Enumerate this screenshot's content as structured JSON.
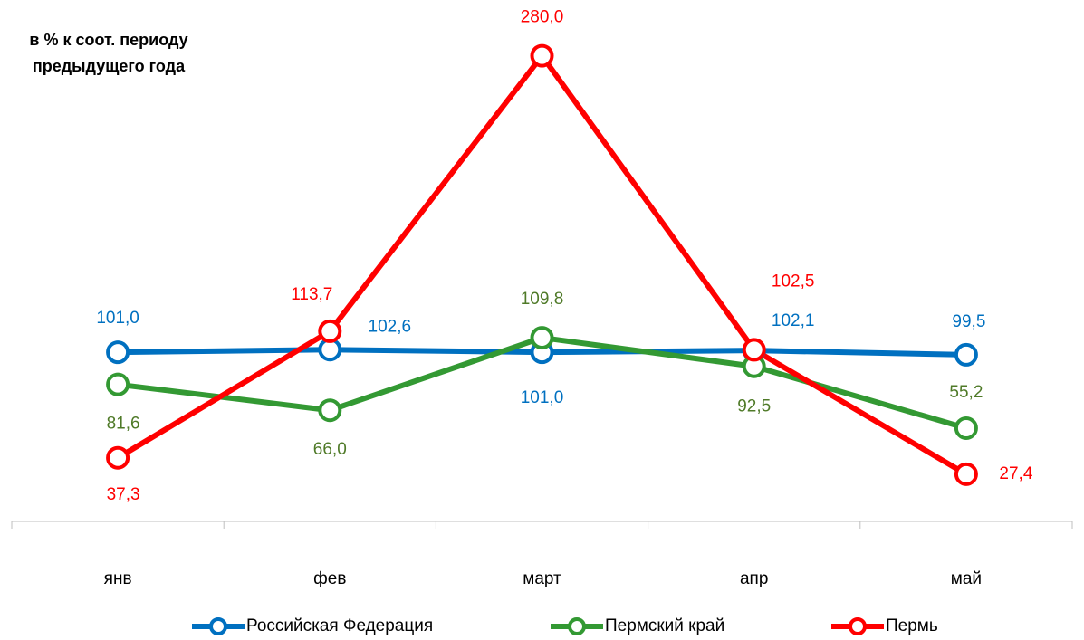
{
  "chart_data": {
    "type": "line",
    "title": [
      "в % к соот. периоду",
      "предыдущего года"
    ],
    "categories": [
      "янв",
      "фев",
      "март",
      "апр",
      "май"
    ],
    "ylim": [
      0,
      300
    ],
    "series": [
      {
        "name": "Российская Федерация",
        "color": "#0070c0",
        "label_color": "#0070c0",
        "values": [
          101.0,
          102.6,
          101.0,
          102.1,
          99.5
        ],
        "value_labels": [
          "101,0",
          "102,6",
          "101,0",
          "102,1",
          "99,5"
        ]
      },
      {
        "name": "Пермский край",
        "color": "#339933",
        "label_color": "#4f7a28",
        "values": [
          81.6,
          66.0,
          109.8,
          92.5,
          55.2
        ],
        "value_labels": [
          "81,6",
          "66,0",
          "109,8",
          "92,5",
          "55,2"
        ]
      },
      {
        "name": "Пермь",
        "color": "#ff0000",
        "label_color": "#ff0000",
        "values": [
          37.3,
          113.7,
          280.0,
          102.5,
          27.4
        ],
        "value_labels": [
          "37,3",
          "113,7",
          "280,0",
          "102,5",
          "27,4"
        ]
      }
    ]
  }
}
